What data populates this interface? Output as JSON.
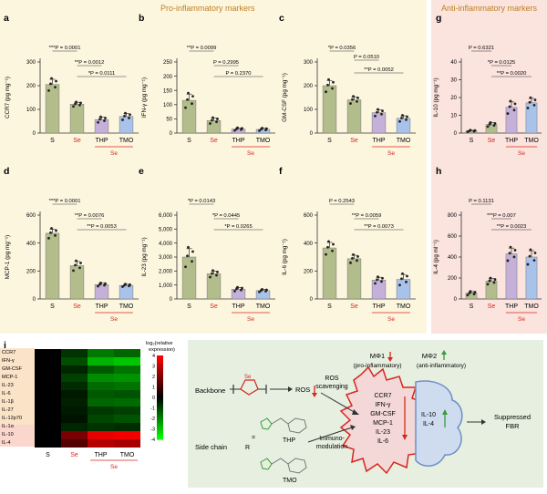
{
  "headers": {
    "pro": "Pro-inflammatory markers",
    "anti": "Anti-inflammatory markers"
  },
  "panel_letters": [
    "a",
    "b",
    "c",
    "d",
    "e",
    "f",
    "g",
    "h"
  ],
  "group_sub_label": "Se",
  "panels": [
    {
      "letter": "a",
      "ylabel": "CCR7 (pg mg⁻¹)",
      "ylim": [
        0,
        300
      ],
      "yticks": [
        "0",
        "100",
        "200",
        "300"
      ],
      "categories": [
        "S",
        "Se",
        "THP",
        "TMO"
      ],
      "values": [
        205,
        122,
        57,
        70
      ],
      "errors": [
        22,
        8,
        10,
        12
      ],
      "stats": [
        "***P = 0.0001",
        "**P = 0.0012",
        "*P = 0.0111"
      ]
    },
    {
      "letter": "b",
      "ylabel": "IFN-γ (pg mg⁻¹)",
      "ylim": [
        0,
        250
      ],
      "yticks": [
        "0",
        "50",
        "100",
        "150",
        "200",
        "250"
      ],
      "categories": [
        "S",
        "Se",
        "THP",
        "TMO"
      ],
      "values": [
        115,
        44,
        14,
        13
      ],
      "errors": [
        22,
        9,
        4,
        4
      ],
      "stats": [
        "**P = 0.0099",
        "P = 0.2995",
        "P = 0.2370"
      ]
    },
    {
      "letter": "c",
      "ylabel": "GM-CSF (pg mg⁻¹)",
      "ylim": [
        0,
        300
      ],
      "yticks": [
        "0",
        "100",
        "200",
        "300"
      ],
      "categories": [
        "S",
        "Se",
        "THP",
        "TMO"
      ],
      "values": [
        200,
        140,
        86,
        62
      ],
      "errors": [
        22,
        13,
        12,
        11
      ],
      "stats": [
        "*P = 0.0356",
        "P = 0.0510",
        "**P = 0.0052"
      ]
    },
    {
      "letter": "d",
      "ylabel": "MCP-1 (pg mg⁻¹)",
      "ylim": [
        0,
        600
      ],
      "yticks": [
        "0",
        "200",
        "400",
        "600"
      ],
      "categories": [
        "S",
        "Se",
        "THP",
        "TMO"
      ],
      "values": [
        470,
        238,
        103,
        97
      ],
      "errors": [
        30,
        30,
        10,
        8
      ],
      "stats": [
        "***P = 0.0001",
        "**P = 0.0076",
        "**P = 0.0053"
      ]
    },
    {
      "letter": "e",
      "ylabel": "IL-23 (pg mg⁻¹)",
      "ylim": [
        0,
        6000
      ],
      "yticks": [
        "0",
        "1,000",
        "2,000",
        "3,000",
        "4,000",
        "5,000",
        "6,000"
      ],
      "categories": [
        "S",
        "Se",
        "THP",
        "TMO"
      ],
      "values": [
        3000,
        1800,
        700,
        600
      ],
      "errors": [
        600,
        200,
        120,
        80
      ],
      "stats": [
        "*P = 0.0143",
        "*P = 0.0445",
        "*P = 0.0265"
      ]
    },
    {
      "letter": "f",
      "ylabel": "IL-6 (pg mg⁻¹)",
      "ylim": [
        0,
        600
      ],
      "yticks": [
        "0",
        "200",
        "400",
        "600"
      ],
      "categories": [
        "S",
        "Se",
        "THP",
        "TMO"
      ],
      "values": [
        365,
        288,
        135,
        140
      ],
      "errors": [
        40,
        25,
        20,
        35
      ],
      "stats": [
        "P = 0.2543",
        "**P = 0.0059",
        "**P = 0.0073"
      ]
    },
    {
      "letter": "g",
      "ylabel": "IL-10 (pg mg⁻¹)",
      "ylim": [
        0,
        40
      ],
      "yticks": [
        "0",
        "10",
        "20",
        "30",
        "40"
      ],
      "categories": [
        "S",
        "Se",
        "THP",
        "TMO"
      ],
      "values": [
        1.2,
        4.8,
        14.5,
        17
      ],
      "errors": [
        0.4,
        1,
        3,
        2.5
      ],
      "stats": [
        "P = 0.6321",
        "*P = 0.0125",
        "**P = 0.0020"
      ]
    },
    {
      "letter": "h",
      "ylabel": "IL-4 (pg ml⁻¹)",
      "ylim": [
        0,
        800
      ],
      "yticks": [
        "0",
        "200",
        "400",
        "600",
        "800"
      ],
      "categories": [
        "S",
        "Se",
        "THP",
        "TMO"
      ],
      "values": [
        55,
        170,
        430,
        400
      ],
      "errors": [
        15,
        25,
        55,
        60
      ],
      "stats": [
        "P = 0.1131",
        "***P = 0.007",
        "**P = 0.0023"
      ]
    }
  ],
  "heatmap": {
    "letter": "i",
    "rows": [
      "CCR7",
      "IFN-γ",
      "GM-CSF",
      "MCP-1",
      "IL-23",
      "IL-6",
      "IL-1β",
      "IL-27",
      "IL-12p70",
      "IL-1α",
      "IL-10",
      "IL-4"
    ],
    "cols": [
      "S",
      "Se",
      "THP",
      "TMO"
    ],
    "values": [
      [
        0,
        -0.8,
        -1.9,
        -1.6
      ],
      [
        0,
        -1.2,
        -2.8,
        -3.1
      ],
      [
        0,
        -0.6,
        -1.4,
        -1.8
      ],
      [
        0,
        -1.0,
        -2.2,
        -2.3
      ],
      [
        0,
        -0.7,
        -1.7,
        -1.8
      ],
      [
        0,
        -0.4,
        -1.4,
        -1.3
      ],
      [
        0,
        -0.5,
        -1.6,
        -1.7
      ],
      [
        0,
        -0.4,
        -0.9,
        -1.0
      ],
      [
        0,
        -0.3,
        -1.1,
        -1.3
      ],
      [
        0,
        -0.6,
        -0.8,
        -0.7
      ],
      [
        0,
        1.9,
        3.6,
        3.8
      ],
      [
        0,
        1.3,
        2.8,
        2.6
      ]
    ],
    "colorbar_title_1": "log₂(relative",
    "colorbar_title_2": "expression)",
    "colorbar_ticks": [
      "4",
      "3",
      "2",
      "1",
      "0",
      "-1",
      "-2",
      "-3",
      "-4"
    ]
  },
  "schematic": {
    "letter": "j",
    "m1_title": "MΦ1",
    "m1_sub": "(pro-inflammatory)",
    "m2_title": "MΦ2",
    "m2_sub": "(anti-inflammatory)",
    "backbone": "Backbone",
    "side_chain": "Side chain",
    "r_label": "R",
    "equals": "=",
    "se_label": "Se",
    "ros": "ROS",
    "ros_scav_1": "ROS",
    "ros_scav_2": "scavenging",
    "thp": "THP",
    "tmo": "TMO",
    "immuno_1": "Immuno-",
    "immuno_2": "modulation",
    "pro_markers": [
      "CCR7",
      "IFN-γ",
      "GM-CSF",
      "MCP-1",
      "IL-23",
      "IL-6"
    ],
    "anti_markers": [
      "IL-10",
      "IL-4"
    ],
    "suppressed_1": "Suppressed",
    "suppressed_2": "FBR"
  },
  "colors": {
    "bar_s": "#b3bd8c",
    "bar_se": "#b3bd8c",
    "bar_thp": "#c4b0d8",
    "bar_tmo": "#a9c2ea",
    "se_red": "#d7261e",
    "header_orange": "#c07f22"
  }
}
